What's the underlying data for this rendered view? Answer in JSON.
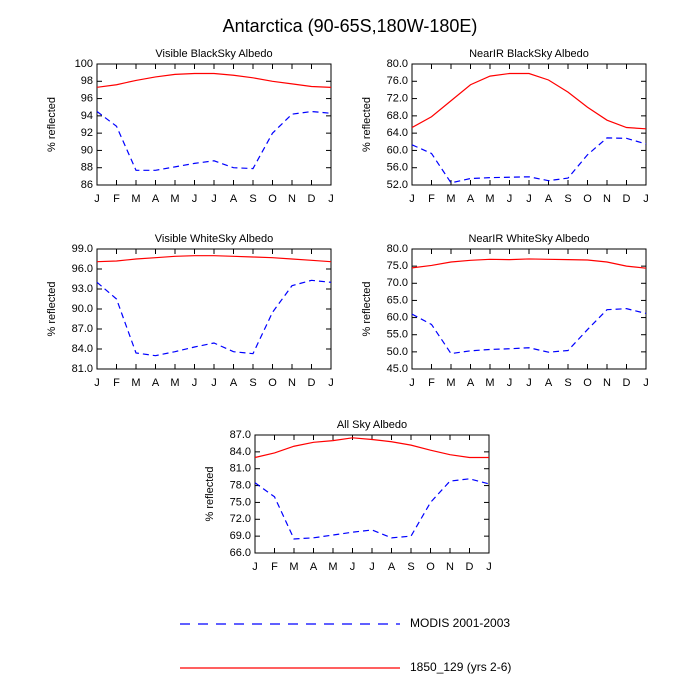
{
  "title": "Antarctica (90-65S,180W-180E)",
  "chart_data": [
    {
      "type": "line",
      "title": "Visible BlackSky Albedo",
      "ylabel": "% reflected",
      "categories": [
        "J",
        "F",
        "M",
        "A",
        "M",
        "J",
        "J",
        "A",
        "S",
        "O",
        "N",
        "D",
        "J"
      ],
      "ylim": [
        86,
        100
      ],
      "yticks": [
        86,
        88,
        90,
        92,
        94,
        96,
        98,
        100
      ],
      "series": [
        {
          "name": "MODIS 2001-2003",
          "color": "#0000ff",
          "style": "dashed",
          "values": [
            94.5,
            92.8,
            87.7,
            87.7,
            88.1,
            88.5,
            88.8,
            88.0,
            87.9,
            92.0,
            94.2,
            94.5,
            94.3
          ]
        },
        {
          "name": "1850_129 (yrs 2-6)",
          "color": "#ff0000",
          "style": "solid",
          "values": [
            97.3,
            97.6,
            98.1,
            98.5,
            98.8,
            98.9,
            98.9,
            98.7,
            98.4,
            98.0,
            97.7,
            97.4,
            97.3
          ]
        }
      ]
    },
    {
      "type": "line",
      "title": "NearIR BlackSky Albedo",
      "ylabel": "% reflected",
      "categories": [
        "J",
        "F",
        "M",
        "A",
        "M",
        "J",
        "J",
        "A",
        "S",
        "O",
        "N",
        "D",
        "J"
      ],
      "ylim": [
        52,
        80
      ],
      "yticks": [
        {
          "value": 52,
          "label": "52.0"
        },
        {
          "value": 56,
          "label": "56.0"
        },
        {
          "value": 60,
          "label": "60.0"
        },
        {
          "value": 64,
          "label": "64.0"
        },
        {
          "value": 68,
          "label": "68.0"
        },
        {
          "value": 72,
          "label": "72.0"
        },
        {
          "value": 76,
          "label": "76.0"
        },
        {
          "value": 80,
          "label": "80.0"
        }
      ],
      "series": [
        {
          "name": "MODIS 2001-2003",
          "color": "#0000ff",
          "style": "dashed",
          "values": [
            61.3,
            59.3,
            52.5,
            53.5,
            53.7,
            53.8,
            53.9,
            53.0,
            53.6,
            59.0,
            62.9,
            62.8,
            61.5
          ]
        },
        {
          "name": "1850_129 (yrs 2-6)",
          "color": "#ff0000",
          "style": "solid",
          "values": [
            65.3,
            67.8,
            71.5,
            75.2,
            77.2,
            77.8,
            77.8,
            76.3,
            73.5,
            70.0,
            67.0,
            65.3,
            65.0
          ]
        }
      ]
    },
    {
      "type": "line",
      "title": "Visible WhiteSky Albedo",
      "ylabel": "% reflected",
      "categories": [
        "J",
        "F",
        "M",
        "A",
        "M",
        "J",
        "J",
        "A",
        "S",
        "O",
        "N",
        "D",
        "J"
      ],
      "ylim": [
        81,
        99
      ],
      "yticks": [
        {
          "value": 81,
          "label": "81.0"
        },
        {
          "value": 84,
          "label": "84.0"
        },
        {
          "value": 87,
          "label": "87.0"
        },
        {
          "value": 90,
          "label": "90.0"
        },
        {
          "value": 93,
          "label": "93.0"
        },
        {
          "value": 96,
          "label": "96.0"
        },
        {
          "value": 99,
          "label": "99.0"
        }
      ],
      "series": [
        {
          "name": "MODIS 2001-2003",
          "color": "#0000ff",
          "style": "dashed",
          "values": [
            94.0,
            91.5,
            83.4,
            83.0,
            83.6,
            84.3,
            84.9,
            83.6,
            83.3,
            89.5,
            93.5,
            94.3,
            94.0
          ]
        },
        {
          "name": "1850_129 (yrs 2-6)",
          "color": "#ff0000",
          "style": "solid",
          "values": [
            97.1,
            97.2,
            97.5,
            97.7,
            97.9,
            98.0,
            98.0,
            97.9,
            97.8,
            97.7,
            97.5,
            97.3,
            97.1
          ]
        }
      ]
    },
    {
      "type": "line",
      "title": "NearIR WhiteSky Albedo",
      "ylabel": "% reflected",
      "categories": [
        "J",
        "F",
        "M",
        "A",
        "M",
        "J",
        "J",
        "A",
        "S",
        "O",
        "N",
        "D",
        "J"
      ],
      "ylim": [
        45,
        80
      ],
      "yticks": [
        {
          "value": 45,
          "label": "45.0"
        },
        {
          "value": 50,
          "label": "50.0"
        },
        {
          "value": 55,
          "label": "55.0"
        },
        {
          "value": 60,
          "label": "60.0"
        },
        {
          "value": 65,
          "label": "65.0"
        },
        {
          "value": 70,
          "label": "70.0"
        },
        {
          "value": 75,
          "label": "75.0"
        },
        {
          "value": 80,
          "label": "80.0"
        }
      ],
      "series": [
        {
          "name": "MODIS 2001-2003",
          "color": "#0000ff",
          "style": "dashed",
          "values": [
            61.0,
            58.0,
            49.5,
            50.3,
            50.7,
            50.9,
            51.2,
            49.9,
            50.4,
            56.5,
            62.3,
            62.6,
            61.2
          ]
        },
        {
          "name": "1850_129 (yrs 2-6)",
          "color": "#ff0000",
          "style": "solid",
          "values": [
            74.5,
            75.2,
            76.2,
            76.7,
            77.0,
            76.9,
            77.1,
            77.0,
            76.9,
            76.8,
            76.2,
            75.0,
            74.4
          ]
        }
      ]
    },
    {
      "type": "line",
      "title": "All Sky Albedo",
      "ylabel": "% reflected",
      "categories": [
        "J",
        "F",
        "M",
        "A",
        "M",
        "J",
        "J",
        "A",
        "S",
        "O",
        "N",
        "D",
        "J"
      ],
      "ylim": [
        66,
        87
      ],
      "yticks": [
        {
          "value": 66,
          "label": "66.0"
        },
        {
          "value": 69,
          "label": "69.0"
        },
        {
          "value": 72,
          "label": "72.0"
        },
        {
          "value": 75,
          "label": "75.0"
        },
        {
          "value": 78,
          "label": "78.0"
        },
        {
          "value": 81,
          "label": "81.0"
        },
        {
          "value": 84,
          "label": "84.0"
        },
        {
          "value": 87,
          "label": "87.0"
        }
      ],
      "series": [
        {
          "name": "MODIS 2001-2003",
          "color": "#0000ff",
          "style": "dashed",
          "values": [
            78.5,
            76.0,
            68.5,
            68.7,
            69.2,
            69.7,
            70.1,
            68.7,
            69.0,
            75.0,
            78.8,
            79.2,
            78.3
          ]
        },
        {
          "name": "1850_129 (yrs 2-6)",
          "color": "#ff0000",
          "style": "solid",
          "values": [
            83.0,
            83.8,
            85.0,
            85.7,
            86.0,
            86.5,
            86.2,
            85.8,
            85.2,
            84.3,
            83.5,
            83.0,
            83.0
          ]
        }
      ]
    }
  ]
}
